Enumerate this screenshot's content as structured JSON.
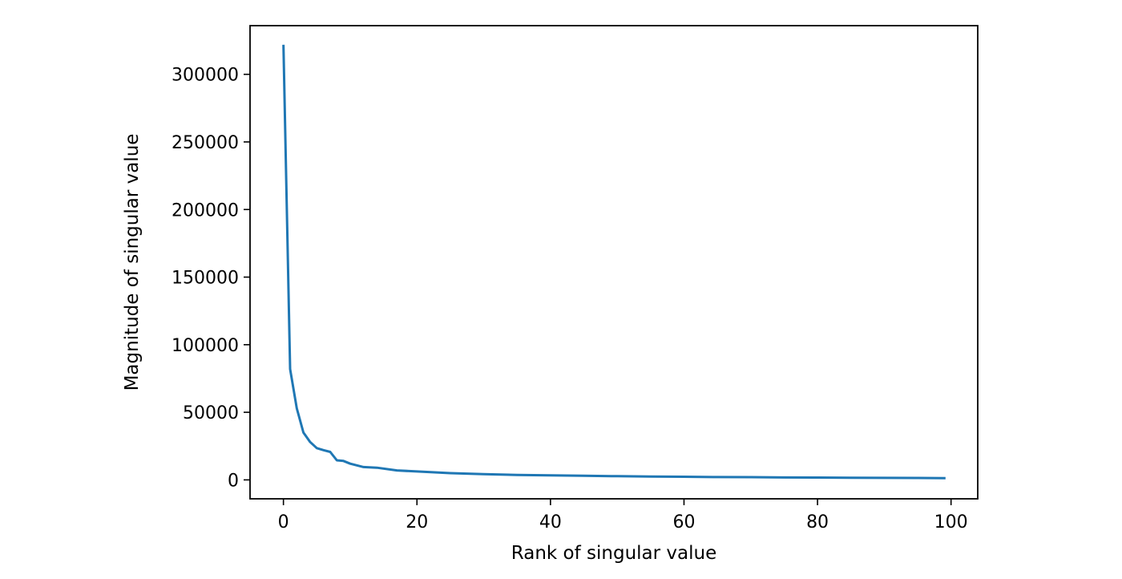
{
  "chart_data": {
    "type": "line",
    "title": "",
    "xlabel": "Rank of singular value",
    "ylabel": "Magnitude of singular value",
    "xlim": [
      -5,
      104
    ],
    "ylim": [
      -14000,
      336000
    ],
    "xticks": [
      0,
      20,
      40,
      60,
      80,
      100
    ],
    "yticks": [
      0,
      50000,
      100000,
      150000,
      200000,
      250000,
      300000
    ],
    "grid": false,
    "line_color": "#1f77b4",
    "series": [
      {
        "x": [
          0,
          1,
          2,
          3,
          4,
          5,
          6,
          7,
          8,
          9,
          10,
          12,
          14,
          17,
          20,
          25,
          30,
          35,
          40,
          45,
          50,
          55,
          60,
          65,
          70,
          75,
          80,
          85,
          90,
          95,
          99
        ],
        "values": [
          321000,
          82000,
          53000,
          35000,
          28000,
          23500,
          22000,
          20700,
          14500,
          14000,
          12000,
          9500,
          9000,
          7000,
          6200,
          5000,
          4300,
          3700,
          3300,
          3000,
          2700,
          2500,
          2300,
          2100,
          2000,
          1800,
          1700,
          1600,
          1500,
          1400,
          1300
        ]
      }
    ]
  }
}
